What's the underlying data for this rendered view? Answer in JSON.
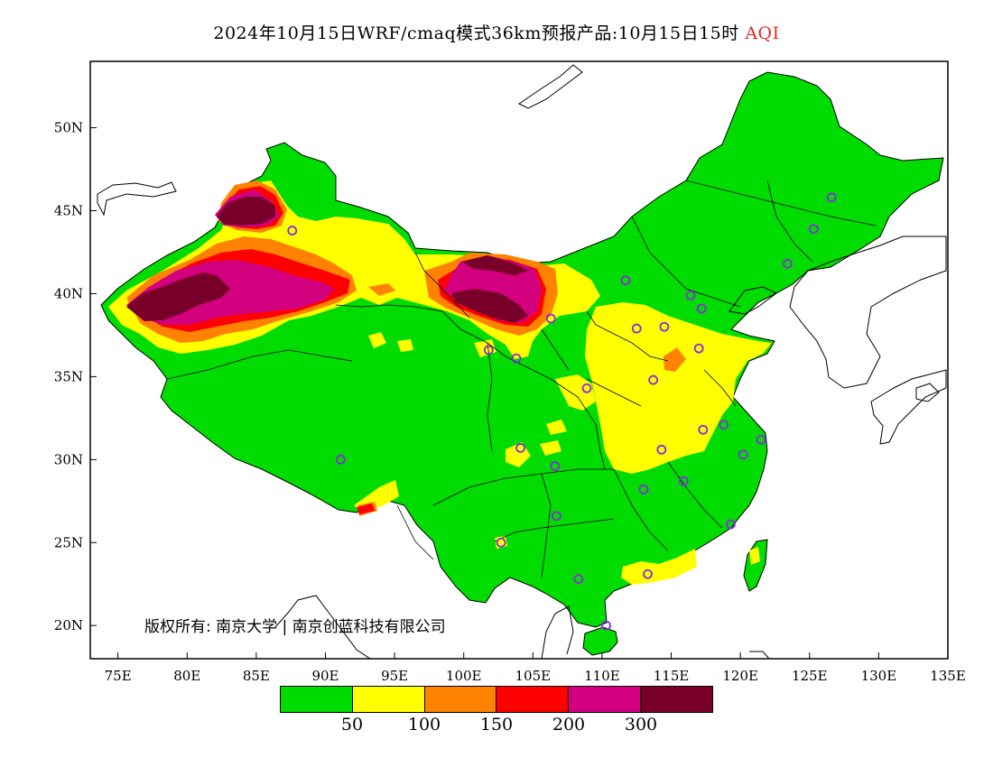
{
  "title": {
    "main": "2024年10月15日WRF/cmaq模式36km预报产品:10月15日15时",
    "variable": "AQI"
  },
  "map": {
    "projection": "lat-lon",
    "lon_range": [
      73,
      135
    ],
    "lat_range": [
      18,
      54
    ],
    "x_ticks": [
      {
        "value": 75,
        "label": "75E"
      },
      {
        "value": 80,
        "label": "80E"
      },
      {
        "value": 85,
        "label": "85E"
      },
      {
        "value": 90,
        "label": "90E"
      },
      {
        "value": 95,
        "label": "95E"
      },
      {
        "value": 100,
        "label": "100E"
      },
      {
        "value": 105,
        "label": "105E"
      },
      {
        "value": 110,
        "label": "110E"
      },
      {
        "value": 115,
        "label": "115E"
      },
      {
        "value": 120,
        "label": "120E"
      },
      {
        "value": 125,
        "label": "125E"
      },
      {
        "value": 130,
        "label": "130E"
      },
      {
        "value": 135,
        "label": "135E"
      }
    ],
    "y_ticks": [
      {
        "value": 20,
        "label": "20N"
      },
      {
        "value": 25,
        "label": "25N"
      },
      {
        "value": 30,
        "label": "30N"
      },
      {
        "value": 35,
        "label": "35N"
      },
      {
        "value": 40,
        "label": "40N"
      },
      {
        "value": 45,
        "label": "45N"
      },
      {
        "value": 50,
        "label": "50N"
      }
    ],
    "colors": {
      "good": "#00dc00",
      "moderate": "#ffff00",
      "sensitive": "#ff8200",
      "unhealthy": "#ff0000",
      "very_unhealthy": "#d2007f",
      "hazardous": "#780028",
      "station": "#8a2be2",
      "border": "#000000"
    },
    "stations": [
      [
        87.6,
        43.8
      ],
      [
        91.1,
        30.0
      ],
      [
        101.8,
        36.6
      ],
      [
        103.8,
        36.1
      ],
      [
        106.3,
        38.5
      ],
      [
        111.7,
        40.8
      ],
      [
        116.4,
        39.9
      ],
      [
        117.2,
        39.1
      ],
      [
        114.5,
        38.0
      ],
      [
        112.5,
        37.9
      ],
      [
        117.0,
        36.7
      ],
      [
        113.7,
        34.8
      ],
      [
        108.9,
        34.3
      ],
      [
        117.3,
        31.8
      ],
      [
        118.8,
        32.1
      ],
      [
        121.5,
        31.2
      ],
      [
        120.2,
        30.3
      ],
      [
        114.3,
        30.6
      ],
      [
        113.0,
        28.2
      ],
      [
        115.9,
        28.7
      ],
      [
        119.3,
        26.1
      ],
      [
        106.7,
        26.6
      ],
      [
        102.7,
        25.0
      ],
      [
        106.6,
        29.6
      ],
      [
        104.1,
        30.7
      ],
      [
        108.3,
        22.8
      ],
      [
        113.3,
        23.1
      ],
      [
        110.3,
        20.0
      ],
      [
        123.4,
        41.8
      ],
      [
        125.3,
        43.9
      ],
      [
        126.6,
        45.8
      ]
    ]
  },
  "copyright": "版权所有: 南京大学 | 南京创蓝科技有限公司",
  "legend": {
    "swatches": [
      "#00dc00",
      "#ffff00",
      "#ff8200",
      "#ff0000",
      "#d2007f",
      "#780028"
    ],
    "labels": [
      "50",
      "100",
      "150",
      "200",
      "300"
    ]
  }
}
